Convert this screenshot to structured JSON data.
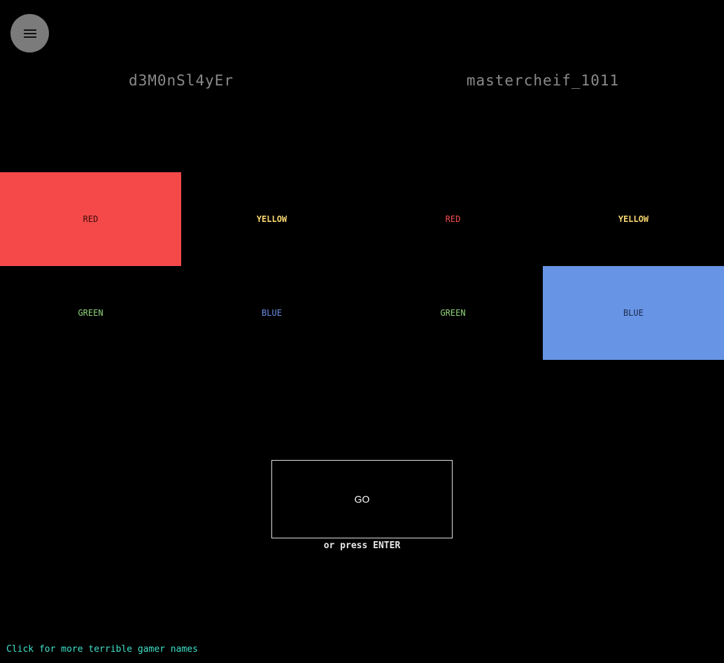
{
  "menu": {
    "icon": "hamburger-menu-icon"
  },
  "players": {
    "left": {
      "name": "d3M0nSl4yEr"
    },
    "right": {
      "name": "mastercheif_1011"
    }
  },
  "colors": {
    "red": "#f54949",
    "yellow": "#f7d56e",
    "green": "#8fd37a",
    "blue": "#6794e5"
  },
  "grid": {
    "left": {
      "selected": "RED",
      "options": [
        "RED",
        "YELLOW",
        "GREEN",
        "BLUE"
      ]
    },
    "right": {
      "selected": "BLUE",
      "options": [
        "RED",
        "YELLOW",
        "GREEN",
        "BLUE"
      ]
    }
  },
  "go_button": {
    "label": "GO",
    "hint": "or press ENTER"
  },
  "footer": {
    "link_text": "Click for more terrible gamer names"
  }
}
